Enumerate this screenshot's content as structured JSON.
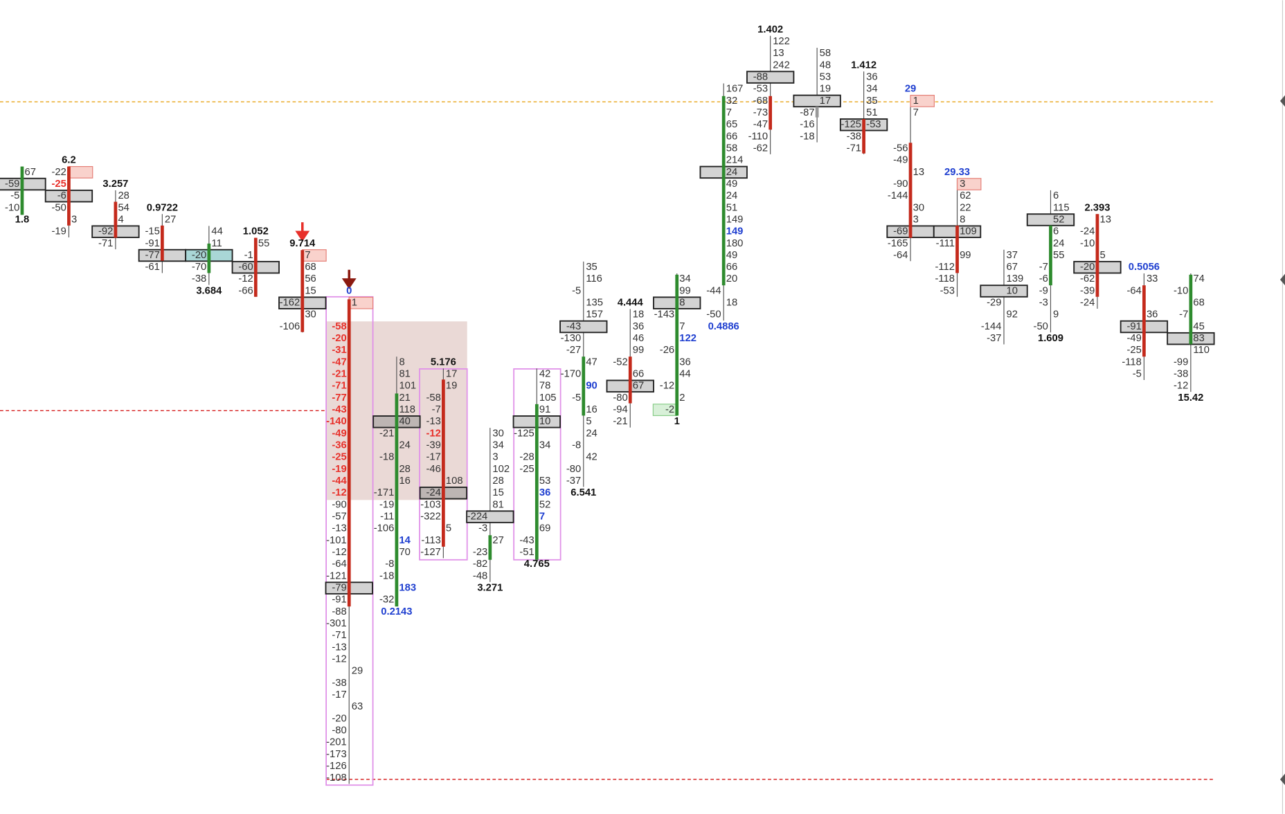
{
  "columns": [
    {
      "rows": [
        [
          null,
          67
        ],
        [
          -59,
          null
        ],
        [
          -5,
          null
        ],
        [
          -10,
          null
        ]
      ],
      "bottom": 1.8
    },
    {
      "top": 6.2,
      "rows": [
        [
          -22,
          null
        ],
        [
          -25,
          null
        ],
        [
          -6,
          null
        ],
        [
          -50,
          null
        ],
        [
          null,
          3
        ],
        [
          -19,
          null
        ]
      ]
    },
    {
      "top": 3.257,
      "rows": [
        [
          null,
          28
        ],
        [
          null,
          54
        ],
        [
          null,
          4
        ],
        [
          -92,
          null
        ],
        [
          -71,
          null
        ]
      ]
    },
    {
      "top": 0.9722,
      "rows": [
        [
          null,
          27
        ],
        [
          -15,
          null
        ],
        [
          -91,
          null
        ],
        [
          -77,
          null
        ],
        [
          -61,
          null
        ]
      ]
    },
    {
      "rows": [
        [
          null,
          44
        ],
        [
          null,
          11
        ],
        [
          -20,
          null
        ],
        [
          -70,
          null
        ],
        [
          -38,
          null
        ]
      ],
      "bottom": 3.684
    },
    {
      "top": 1.052,
      "rows": [
        [
          null,
          55
        ],
        [
          -1,
          null
        ],
        [
          -60,
          null
        ],
        [
          -12,
          null
        ],
        [
          -66,
          null
        ]
      ]
    },
    {
      "top": 9.714,
      "rows": [
        [
          null,
          7
        ],
        [
          null,
          68
        ],
        [
          null,
          56
        ],
        [
          null,
          15
        ],
        [
          -162,
          null
        ],
        [
          null,
          30
        ],
        [
          -106,
          null
        ]
      ]
    },
    {
      "top": 0,
      "rows": [
        [
          null,
          1
        ],
        [
          null,
          null
        ],
        [
          -58,
          null
        ],
        [
          -20,
          null
        ],
        [
          -31,
          null
        ],
        [
          -47,
          null
        ],
        [
          -21,
          null
        ],
        [
          -71,
          null
        ],
        [
          -77,
          null
        ],
        [
          -43,
          null
        ],
        [
          -140,
          null
        ],
        [
          -49,
          null
        ],
        [
          -36,
          null
        ],
        [
          -25,
          null
        ],
        [
          -19,
          null
        ],
        [
          -44,
          null
        ],
        [
          -12,
          null
        ],
        [
          -90,
          null
        ],
        [
          -57,
          null
        ],
        [
          -13,
          null
        ],
        [
          -101,
          null
        ],
        [
          -12,
          null
        ],
        [
          -64,
          null
        ],
        [
          -121,
          null
        ],
        [
          -79,
          null
        ],
        [
          -91,
          null
        ],
        [
          -88,
          null
        ],
        [
          -301,
          null
        ],
        [
          -71,
          null
        ],
        [
          -13,
          null
        ],
        [
          -12,
          null
        ],
        [
          null,
          29
        ],
        [
          -38,
          null
        ],
        [
          -17,
          null
        ],
        [
          null,
          63
        ],
        [
          -20,
          null
        ],
        [
          -80,
          null
        ],
        [
          -201,
          null
        ],
        [
          -173,
          null
        ],
        [
          -126,
          null
        ],
        [
          -108,
          null
        ]
      ]
    },
    {
      "rows": [
        [
          null,
          8
        ],
        [
          null,
          81
        ],
        [
          null,
          101
        ],
        [
          null,
          21
        ],
        [
          null,
          118
        ],
        [
          null,
          40
        ],
        [
          -21,
          null
        ],
        [
          null,
          24
        ],
        [
          -18,
          null
        ],
        [
          null,
          28
        ],
        [
          null,
          16
        ],
        [
          -171,
          null
        ],
        [
          -19,
          null
        ],
        [
          -11,
          null
        ],
        [
          -106,
          null
        ],
        [
          null,
          14
        ],
        [
          null,
          70
        ],
        [
          -8,
          null
        ],
        [
          -18,
          null
        ],
        [
          null,
          183
        ],
        [
          -32,
          null
        ]
      ],
      "bottom": 0.2143
    },
    {
      "top": 5.176,
      "rows": [
        [
          null,
          17
        ],
        [
          null,
          19
        ],
        [
          -58,
          null
        ],
        [
          -7,
          null
        ],
        [
          -13,
          null
        ],
        [
          -12,
          null
        ],
        [
          -39,
          null
        ],
        [
          -17,
          null
        ],
        [
          -46,
          null
        ],
        [
          null,
          108
        ],
        [
          -24,
          null
        ],
        [
          -103,
          null
        ],
        [
          -322,
          null
        ],
        [
          null,
          5
        ],
        [
          -113,
          null
        ],
        [
          -127,
          null
        ]
      ]
    },
    {
      "rows": [
        [
          null,
          30
        ],
        [
          null,
          34
        ],
        [
          null,
          3
        ],
        [
          null,
          102
        ],
        [
          null,
          28
        ],
        [
          null,
          15
        ],
        [
          null,
          81
        ],
        [
          -224,
          null
        ],
        [
          -3,
          null
        ],
        [
          null,
          27
        ],
        [
          -23,
          null
        ],
        [
          -82,
          null
        ],
        [
          -48,
          null
        ]
      ],
      "bottom": 3.271
    },
    {
      "rows": [
        [
          null,
          42
        ],
        [
          null,
          78
        ],
        [
          null,
          105
        ],
        [
          null,
          91
        ],
        [
          null,
          10
        ],
        [
          -125,
          null
        ],
        [
          null,
          34
        ],
        [
          -28,
          null
        ],
        [
          -25,
          null
        ],
        [
          null,
          53
        ],
        [
          null,
          36
        ],
        [
          null,
          52
        ],
        [
          null,
          7
        ],
        [
          null,
          69
        ],
        [
          -43,
          null
        ],
        [
          -51,
          null
        ]
      ],
      "bottom": 4.765
    },
    {
      "rows": [
        [
          null,
          35
        ],
        [
          null,
          116
        ],
        [
          -5,
          null
        ],
        [
          null,
          135
        ],
        [
          null,
          157
        ],
        [
          -43,
          null
        ],
        [
          -130,
          null
        ],
        [
          -27,
          null
        ],
        [
          null,
          47
        ],
        [
          -170,
          null
        ],
        [
          null,
          90
        ],
        [
          -5,
          null
        ],
        [
          null,
          16
        ],
        [
          null,
          5
        ],
        [
          null,
          24
        ],
        [
          -8,
          null
        ],
        [
          null,
          42
        ],
        [
          -80,
          null
        ],
        [
          -37,
          null
        ]
      ],
      "bottom": 6.541
    },
    {
      "top": 4.444,
      "rows": [
        [
          null,
          18
        ],
        [
          null,
          36
        ],
        [
          null,
          46
        ],
        [
          null,
          99
        ],
        [
          -52,
          null
        ],
        [
          null,
          66
        ],
        [
          null,
          67
        ],
        [
          -80,
          null
        ],
        [
          -94,
          null
        ],
        [
          -21,
          null
        ]
      ]
    },
    {
      "rows": [
        [
          null,
          34
        ],
        [
          null,
          99
        ],
        [
          null,
          8
        ],
        [
          -143,
          null
        ],
        [
          null,
          7
        ],
        [
          null,
          122
        ],
        [
          -26,
          null
        ],
        [
          null,
          36
        ],
        [
          null,
          44
        ],
        [
          -12,
          null
        ],
        [
          null,
          2
        ],
        [
          -2,
          null
        ]
      ],
      "bottom": 1
    },
    {
      "rows": [
        [
          null,
          167
        ],
        [
          null,
          32
        ],
        [
          null,
          7
        ],
        [
          null,
          65
        ],
        [
          null,
          66
        ],
        [
          null,
          58
        ],
        [
          null,
          214
        ],
        [
          null,
          24
        ],
        [
          null,
          49
        ],
        [
          null,
          24
        ],
        [
          null,
          51
        ],
        [
          null,
          149
        ],
        [
          null,
          149
        ],
        [
          null,
          180
        ],
        [
          null,
          49
        ],
        [
          null,
          66
        ],
        [
          null,
          20
        ],
        [
          -44,
          null
        ],
        [
          null,
          18
        ],
        [
          -50,
          null
        ]
      ],
      "bottom": 0.4886
    },
    {
      "top": 1.402,
      "rows": [
        [
          null,
          122
        ],
        [
          null,
          13
        ],
        [
          null,
          242
        ],
        [
          -88,
          null
        ],
        [
          -53,
          null
        ],
        [
          -68,
          null
        ],
        [
          -73,
          null
        ],
        [
          -47,
          null
        ],
        [
          -110,
          null
        ],
        [
          -62,
          null
        ]
      ]
    },
    {
      "rows": [
        [
          null,
          58
        ],
        [
          null,
          48
        ],
        [
          null,
          53
        ],
        [
          null,
          19
        ],
        [
          null,
          17
        ],
        [
          -87,
          null
        ],
        [
          -16,
          null
        ],
        [
          -18,
          null
        ]
      ]
    },
    {
      "top": 1.412,
      "rows": [
        [
          null,
          36
        ],
        [
          null,
          34
        ],
        [
          null,
          35
        ],
        [
          null,
          51
        ],
        [
          -125,
          -53
        ],
        [
          -38,
          null
        ],
        [
          -71,
          null
        ]
      ]
    },
    {
      "top": 29,
      "rows": [
        [
          null,
          1
        ],
        [
          null,
          7
        ],
        [
          null,
          null
        ],
        [
          null,
          null
        ],
        [
          -56,
          null
        ],
        [
          -49,
          null
        ],
        [
          null,
          13
        ],
        [
          -90,
          null
        ],
        [
          -144,
          null
        ],
        [
          null,
          30
        ],
        [
          null,
          3
        ],
        [
          -69,
          null
        ],
        [
          -165,
          null
        ],
        [
          -64,
          null
        ]
      ]
    },
    {
      "top": 29.33,
      "rows": [
        [
          null,
          3
        ],
        [
          null,
          62
        ],
        [
          null,
          22
        ],
        [
          null,
          8
        ],
        [
          null,
          109
        ],
        [
          -111,
          null
        ],
        [
          null,
          99
        ],
        [
          -112,
          null
        ],
        [
          -118,
          null
        ],
        [
          -53,
          null
        ]
      ]
    },
    {
      "rows": [
        [
          null,
          37
        ],
        [
          null,
          67
        ],
        [
          null,
          139
        ],
        [
          null,
          10
        ],
        [
          -29,
          null
        ],
        [
          null,
          92
        ],
        [
          -144,
          null
        ],
        [
          -37,
          null
        ]
      ]
    },
    {
      "rows": [
        [
          null,
          6
        ],
        [
          null,
          115
        ],
        [
          null,
          52
        ],
        [
          null,
          6
        ],
        [
          null,
          24
        ],
        [
          null,
          55
        ],
        [
          -7,
          null
        ],
        [
          -6,
          null
        ],
        [
          -9,
          null
        ],
        [
          -3,
          null
        ],
        [
          null,
          9
        ],
        [
          -50,
          null
        ]
      ],
      "bottom": 1.609
    },
    {
      "top": 2.393,
      "rows": [
        [
          null,
          13
        ],
        [
          -24,
          null
        ],
        [
          -10,
          null
        ],
        [
          null,
          5
        ],
        [
          -20,
          null
        ],
        [
          -62,
          null
        ],
        [
          -39,
          null
        ],
        [
          -24,
          null
        ]
      ]
    },
    {
      "top": 0.5056,
      "rows": [
        [
          null,
          33
        ],
        [
          -64,
          null
        ],
        [
          null,
          null
        ],
        [
          null,
          36
        ],
        [
          -91,
          null
        ],
        [
          -49,
          null
        ],
        [
          -25,
          null
        ],
        [
          -118,
          null
        ],
        [
          -5,
          null
        ]
      ]
    },
    {
      "rows": [
        [
          null,
          74
        ],
        [
          -10,
          null
        ],
        [
          null,
          68
        ],
        [
          -7,
          null
        ],
        [
          null,
          45
        ],
        [
          null,
          83
        ],
        [
          null,
          110
        ],
        [
          -99,
          null
        ],
        [
          -38,
          null
        ],
        [
          -12,
          null
        ]
      ],
      "bottom": 15.42
    }
  ]
}
